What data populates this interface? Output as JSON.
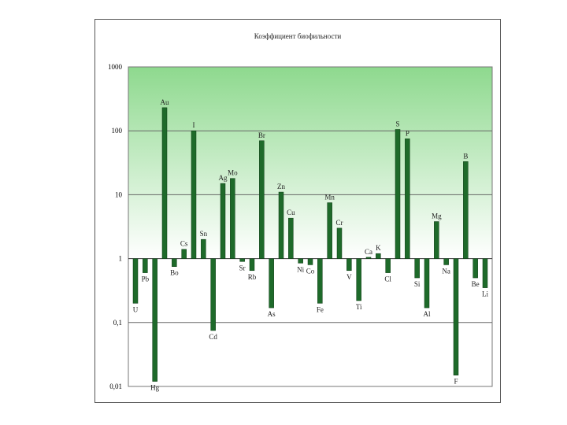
{
  "chart_data": {
    "type": "bar",
    "title": "Коэффициент биофильности",
    "xlabel": "",
    "ylabel": "",
    "yscale": "log",
    "ylim": [
      0.01,
      1000
    ],
    "baseline": 1,
    "y_ticks": [
      {
        "value": 1000,
        "label": "1000"
      },
      {
        "value": 100,
        "label": "100"
      },
      {
        "value": 10,
        "label": "10"
      },
      {
        "value": 1,
        "label": "1"
      },
      {
        "value": 0.1,
        "label": "0,1"
      },
      {
        "value": 0.01,
        "label": "0,01"
      }
    ],
    "gridlines": [
      100,
      10,
      1,
      0.1
    ],
    "background_gradient": [
      "#8ed98e",
      "#ffffff"
    ],
    "bar_color": "#1e6a2a",
    "categories": [
      "U",
      "Pb",
      "Hg",
      "Au",
      "Bo",
      "Cs",
      "I",
      "Sn",
      "Cd",
      "Ag",
      "Mo",
      "Sr",
      "Rb",
      "Br",
      "As",
      "Zn",
      "Cu",
      "Ni",
      "Co",
      "Fe",
      "Mn",
      "Cr",
      "V",
      "Ti",
      "Ca",
      "K",
      "Cl",
      "S",
      "P",
      "Si",
      "Al",
      "Mg",
      "Na",
      "F",
      "B",
      "Be",
      "Li"
    ],
    "values": [
      0.2,
      0.6,
      0.012,
      230,
      0.75,
      1.4,
      100,
      2.0,
      0.075,
      15,
      18,
      0.9,
      0.65,
      70,
      0.17,
      11,
      4.3,
      0.85,
      0.8,
      0.2,
      7.5,
      3.0,
      0.65,
      0.22,
      1.05,
      1.2,
      0.6,
      105,
      75,
      0.5,
      0.17,
      3.8,
      0.8,
      0.015,
      33,
      0.5,
      0.35
    ]
  }
}
